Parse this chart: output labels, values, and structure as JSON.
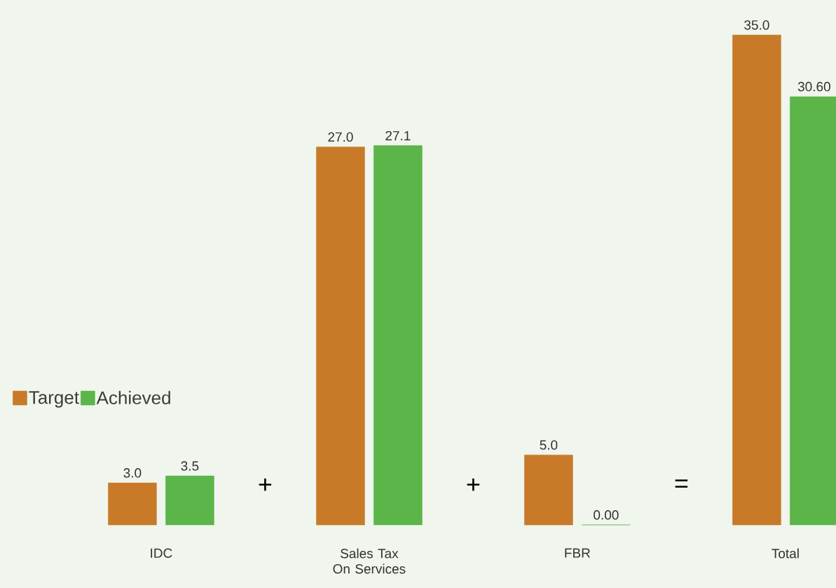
{
  "chart_data": {
    "type": "bar",
    "categories": [
      "IDC",
      "Sales Tax On Services",
      "FBR",
      "Total"
    ],
    "series": [
      {
        "name": "Target",
        "color": "#c87a28",
        "values": [
          3.0,
          27.0,
          5.0,
          35.0
        ],
        "value_labels": [
          "3.0",
          "27.0",
          "5.0",
          "35.0"
        ]
      },
      {
        "name": "Achieved",
        "color": "#5cb548",
        "values": [
          3.5,
          27.1,
          0.0,
          30.6
        ],
        "value_labels": [
          "3.5",
          "27.1",
          "0.00",
          "30.60"
        ]
      }
    ],
    "annotations": [
      "+",
      "+",
      "="
    ],
    "legend": "left"
  }
}
